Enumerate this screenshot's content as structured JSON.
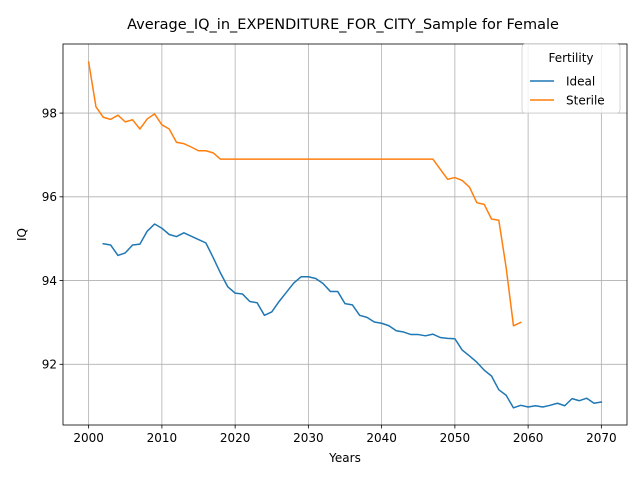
{
  "chart_data": {
    "type": "line",
    "title": "Average_IQ_in_EXPENDITURE_FOR_CITY_Sample for Female",
    "xlabel": "Years",
    "ylabel": "IQ",
    "xlim": [
      1996.5,
      2073.5
    ],
    "ylim": [
      90.55,
      99.65
    ],
    "xticks": [
      2000,
      2010,
      2020,
      2030,
      2040,
      2050,
      2060,
      2070
    ],
    "yticks": [
      92,
      94,
      96,
      98
    ],
    "grid": true,
    "legend": {
      "title": "Fertility",
      "position": "upper right"
    },
    "series": [
      {
        "name": "Ideal",
        "color": "#1f77b4",
        "x": [
          2002,
          2003,
          2004,
          2005,
          2006,
          2007,
          2008,
          2009,
          2010,
          2011,
          2012,
          2013,
          2014,
          2015,
          2016,
          2017,
          2018,
          2019,
          2020,
          2021,
          2022,
          2023,
          2024,
          2025,
          2026,
          2027,
          2028,
          2029,
          2030,
          2031,
          2032,
          2033,
          2034,
          2035,
          2036,
          2037,
          2038,
          2039,
          2040,
          2041,
          2042,
          2043,
          2044,
          2045,
          2046,
          2047,
          2048,
          2049,
          2050,
          2051,
          2052,
          2053,
          2054,
          2055,
          2056,
          2057,
          2058,
          2059,
          2060,
          2061,
          2062,
          2063,
          2064,
          2065,
          2066,
          2067,
          2068,
          2069,
          2070
        ],
        "values": [
          94.88,
          94.85,
          94.6,
          94.66,
          94.85,
          94.87,
          95.18,
          95.35,
          95.25,
          95.1,
          95.05,
          95.14,
          95.06,
          94.98,
          94.9,
          94.55,
          94.18,
          93.85,
          93.7,
          93.68,
          93.5,
          93.47,
          93.17,
          93.25,
          93.5,
          93.72,
          93.94,
          94.09,
          94.09,
          94.05,
          93.93,
          93.74,
          93.74,
          93.45,
          93.42,
          93.17,
          93.12,
          93.01,
          92.98,
          92.92,
          92.8,
          92.77,
          92.71,
          92.71,
          92.68,
          92.72,
          92.64,
          92.62,
          92.61,
          92.34,
          92.2,
          92.05,
          91.86,
          91.72,
          91.39,
          91.26,
          90.96,
          91.02,
          90.98,
          91.01,
          90.98,
          91.02,
          91.07,
          91.01,
          91.18,
          91.13,
          91.19,
          91.07,
          91.1
        ]
      },
      {
        "name": "Sterile",
        "color": "#ff7f0e",
        "x": [
          2000,
          2001,
          2002,
          2003,
          2004,
          2005,
          2006,
          2007,
          2008,
          2009,
          2010,
          2011,
          2012,
          2013,
          2014,
          2015,
          2016,
          2017,
          2018,
          2019,
          2020,
          2021,
          2022,
          2023,
          2024,
          2025,
          2026,
          2027,
          2028,
          2029,
          2030,
          2031,
          2032,
          2033,
          2034,
          2035,
          2036,
          2037,
          2038,
          2039,
          2040,
          2041,
          2042,
          2043,
          2044,
          2045,
          2046,
          2047,
          2048,
          2049,
          2050,
          2051,
          2052,
          2053,
          2054,
          2055,
          2056,
          2057,
          2058,
          2059
        ],
        "values": [
          99.22,
          98.15,
          97.9,
          97.85,
          97.95,
          97.79,
          97.84,
          97.62,
          97.86,
          97.98,
          97.72,
          97.62,
          97.3,
          97.27,
          97.19,
          97.1,
          97.1,
          97.05,
          96.9,
          96.9,
          96.9,
          96.9,
          96.9,
          96.9,
          96.9,
          96.9,
          96.9,
          96.9,
          96.9,
          96.9,
          96.9,
          96.9,
          96.9,
          96.9,
          96.9,
          96.9,
          96.9,
          96.9,
          96.9,
          96.9,
          96.9,
          96.9,
          96.9,
          96.9,
          96.9,
          96.9,
          96.9,
          96.9,
          96.66,
          96.42,
          96.46,
          96.39,
          96.23,
          95.86,
          95.82,
          95.47,
          95.44,
          94.31,
          92.92,
          93.0
        ]
      }
    ]
  }
}
